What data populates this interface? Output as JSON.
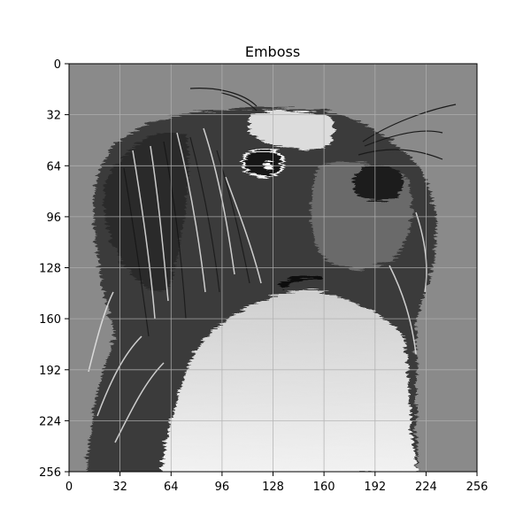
{
  "title": "Emboss",
  "image": {
    "description_tag": "embossed-dog-photo",
    "tone": "grayscale",
    "background_color": "#8a8a8a"
  },
  "axes": {
    "x_ticks": [
      "0",
      "32",
      "64",
      "96",
      "128",
      "160",
      "192",
      "224",
      "256"
    ],
    "y_ticks": [
      "0",
      "32",
      "64",
      "96",
      "128",
      "160",
      "192",
      "224",
      "256"
    ],
    "grid": true,
    "xlim": [
      0,
      256
    ],
    "ylim": [
      256,
      0
    ]
  },
  "colors": {
    "axis": "#000000",
    "grid": "#b0b0b0",
    "figure_bg": "#ffffff"
  }
}
